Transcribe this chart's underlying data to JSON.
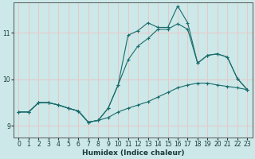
{
  "xlabel": "Humidex (Indice chaleur)",
  "bg_color": "#cce8e8",
  "grid_color": "#e8c8c8",
  "line_color": "#1a6b6b",
  "xlim": [
    -0.5,
    23.5
  ],
  "ylim": [
    8.75,
    11.65
  ],
  "yticks": [
    9,
    10,
    11
  ],
  "xticks": [
    0,
    1,
    2,
    3,
    4,
    5,
    6,
    7,
    8,
    9,
    10,
    11,
    12,
    13,
    14,
    15,
    16,
    17,
    18,
    19,
    20,
    21,
    22,
    23
  ],
  "line1_x": [
    0,
    1,
    2,
    3,
    4,
    5,
    6,
    7,
    8,
    9,
    10,
    11,
    12,
    13,
    14,
    15,
    16,
    17,
    18,
    19,
    20,
    21,
    22,
    23
  ],
  "line1_y": [
    9.3,
    9.3,
    9.5,
    9.5,
    9.45,
    9.38,
    9.32,
    9.08,
    9.12,
    9.18,
    9.3,
    9.38,
    9.45,
    9.52,
    9.62,
    9.72,
    9.82,
    9.88,
    9.92,
    9.92,
    9.88,
    9.85,
    9.82,
    9.78
  ],
  "line2_x": [
    0,
    1,
    2,
    3,
    4,
    5,
    6,
    7,
    8,
    9,
    10,
    11,
    12,
    13,
    14,
    15,
    16,
    17,
    18,
    19,
    20,
    21,
    22,
    23
  ],
  "line2_y": [
    9.3,
    9.3,
    9.5,
    9.5,
    9.45,
    9.38,
    9.32,
    9.08,
    9.12,
    9.38,
    9.88,
    10.42,
    10.72,
    10.88,
    11.08,
    11.08,
    11.2,
    11.08,
    10.35,
    10.52,
    10.55,
    10.48,
    10.02,
    9.78
  ],
  "line3_x": [
    0,
    1,
    2,
    3,
    4,
    5,
    6,
    7,
    8,
    9,
    10,
    11,
    12,
    13,
    14,
    15,
    16,
    17,
    18,
    19,
    20,
    21,
    22,
    23
  ],
  "line3_y": [
    9.3,
    9.3,
    9.5,
    9.5,
    9.45,
    9.38,
    9.32,
    9.08,
    9.12,
    9.38,
    9.88,
    10.95,
    11.05,
    11.22,
    11.12,
    11.12,
    11.58,
    11.22,
    10.35,
    10.52,
    10.55,
    10.48,
    10.02,
    9.78
  ]
}
